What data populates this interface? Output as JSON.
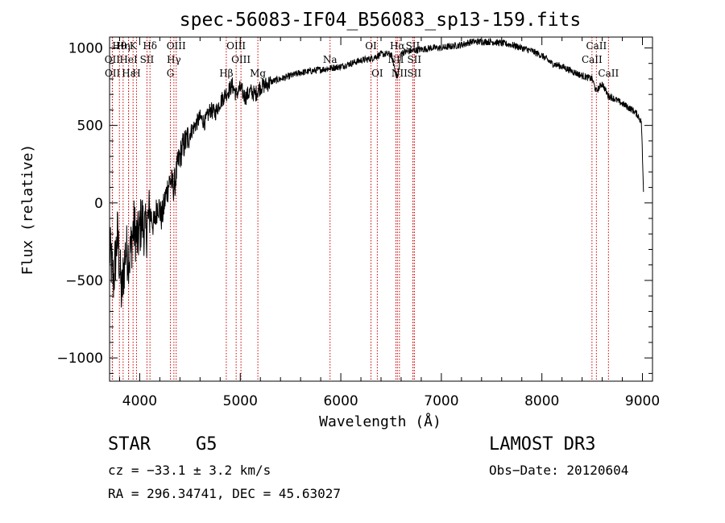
{
  "chart_data": {
    "type": "line",
    "title": "spec-56083-IF04_B56083_sp13-159.fits",
    "xlabel": "Wavelength (Å)",
    "ylabel": "Flux (relative)",
    "xlim": [
      3700,
      9100
    ],
    "ylim": [
      -1150,
      1070
    ],
    "xticks": [
      4000,
      5000,
      6000,
      7000,
      8000,
      9000
    ],
    "xtick_labels": [
      "4000",
      "5000",
      "6000",
      "7000",
      "8000",
      "9000"
    ],
    "yticks": [
      -1000,
      -500,
      0,
      500,
      1000
    ],
    "ytick_labels": [
      "−1000",
      "−500",
      "0",
      "500",
      "1000"
    ],
    "series": [
      {
        "name": "spectrum",
        "x": [
          3700,
          3740,
          3780,
          3820,
          3860,
          3900,
          3940,
          3980,
          4020,
          4060,
          4100,
          4140,
          4180,
          4220,
          4260,
          4300,
          4340,
          4380,
          4420,
          4460,
          4500,
          4550,
          4600,
          4650,
          4700,
          4750,
          4800,
          4850,
          4880,
          4920,
          4960,
          5000,
          5050,
          5100,
          5150,
          5200,
          5250,
          5300,
          5400,
          5500,
          5600,
          5700,
          5800,
          5900,
          6000,
          6100,
          6200,
          6300,
          6400,
          6500,
          6563,
          6600,
          6700,
          6800,
          6900,
          7000,
          7100,
          7200,
          7300,
          7400,
          7500,
          7600,
          7700,
          7800,
          7900,
          8000,
          8100,
          8200,
          8300,
          8400,
          8500,
          8540,
          8600,
          8660,
          8700,
          8800,
          8900,
          8950,
          8990,
          9000,
          9010
        ],
        "y": [
          -300,
          -500,
          -200,
          -600,
          -300,
          -350,
          -150,
          -250,
          -100,
          -200,
          -50,
          -150,
          0,
          -100,
          50,
          150,
          100,
          250,
          350,
          400,
          450,
          500,
          550,
          520,
          600,
          580,
          650,
          700,
          720,
          760,
          700,
          740,
          680,
          720,
          700,
          750,
          760,
          780,
          800,
          820,
          840,
          850,
          860,
          870,
          880,
          900,
          920,
          930,
          960,
          960,
          800,
          970,
          980,
          990,
          1000,
          1000,
          1010,
          1020,
          1040,
          1040,
          1040,
          1030,
          1020,
          1000,
          980,
          950,
          900,
          880,
          850,
          820,
          800,
          720,
          770,
          690,
          680,
          640,
          600,
          570,
          520,
          300,
          80
        ]
      }
    ],
    "lines": [
      {
        "label": "Hθ",
        "x": 3798,
        "row": 0
      },
      {
        "label": "OII",
        "x": 3727,
        "row": 1
      },
      {
        "label": "OII",
        "x": 3729,
        "row": 2
      },
      {
        "label": "Hη",
        "x": 3835,
        "row": 0
      },
      {
        "label": "HeI",
        "x": 3889,
        "row": 1
      },
      {
        "label": "Hε",
        "x": 3889,
        "row": 2
      },
      {
        "label": "K",
        "x": 3934,
        "row": 0
      },
      {
        "label": "H",
        "x": 3968,
        "row": 2
      },
      {
        "label": "SII",
        "x": 4072,
        "row": 1
      },
      {
        "label": "Hδ",
        "x": 4102,
        "row": 0
      },
      {
        "label": "OIII",
        "x": 4363,
        "row": 0
      },
      {
        "label": "Hγ",
        "x": 4340,
        "row": 1
      },
      {
        "label": "G",
        "x": 4305,
        "row": 2
      },
      {
        "label": "OIII",
        "x": 4959,
        "row": 0
      },
      {
        "label": "OIII",
        "x": 5007,
        "row": 1
      },
      {
        "label": "Hβ",
        "x": 4861,
        "row": 2
      },
      {
        "label": "Mg",
        "x": 5175,
        "row": 2
      },
      {
        "label": "Na",
        "x": 5893,
        "row": 1
      },
      {
        "label": "OI",
        "x": 6300,
        "row": 0
      },
      {
        "label": "OI",
        "x": 6363,
        "row": 2
      },
      {
        "label": "Hα",
        "x": 6563,
        "row": 0
      },
      {
        "label": "NII",
        "x": 6548,
        "row": 1
      },
      {
        "label": "NII",
        "x": 6583,
        "row": 2
      },
      {
        "label": "SII",
        "x": 6716,
        "row": 0
      },
      {
        "label": "SII",
        "x": 6731,
        "row": 1
      },
      {
        "label": "SII",
        "x": 6731,
        "row": 2
      },
      {
        "label": "CaII",
        "x": 8542,
        "row": 0
      },
      {
        "label": "CaII",
        "x": 8498,
        "row": 1
      },
      {
        "label": "CaII",
        "x": 8662,
        "row": 2
      }
    ],
    "grid": false
  },
  "info": {
    "obj_type": "STAR",
    "subclass": "G5",
    "survey": "LAMOST DR3",
    "velocity": "cz = −33.1 ± 3.2 km/s",
    "obs_date": "Obs−Date: 20120604",
    "coords": "RA = 296.34741, DEC =  45.63027"
  },
  "colors": {
    "spectrum": "#000000",
    "line_marker": "#cc0000",
    "axes": "#000000"
  }
}
